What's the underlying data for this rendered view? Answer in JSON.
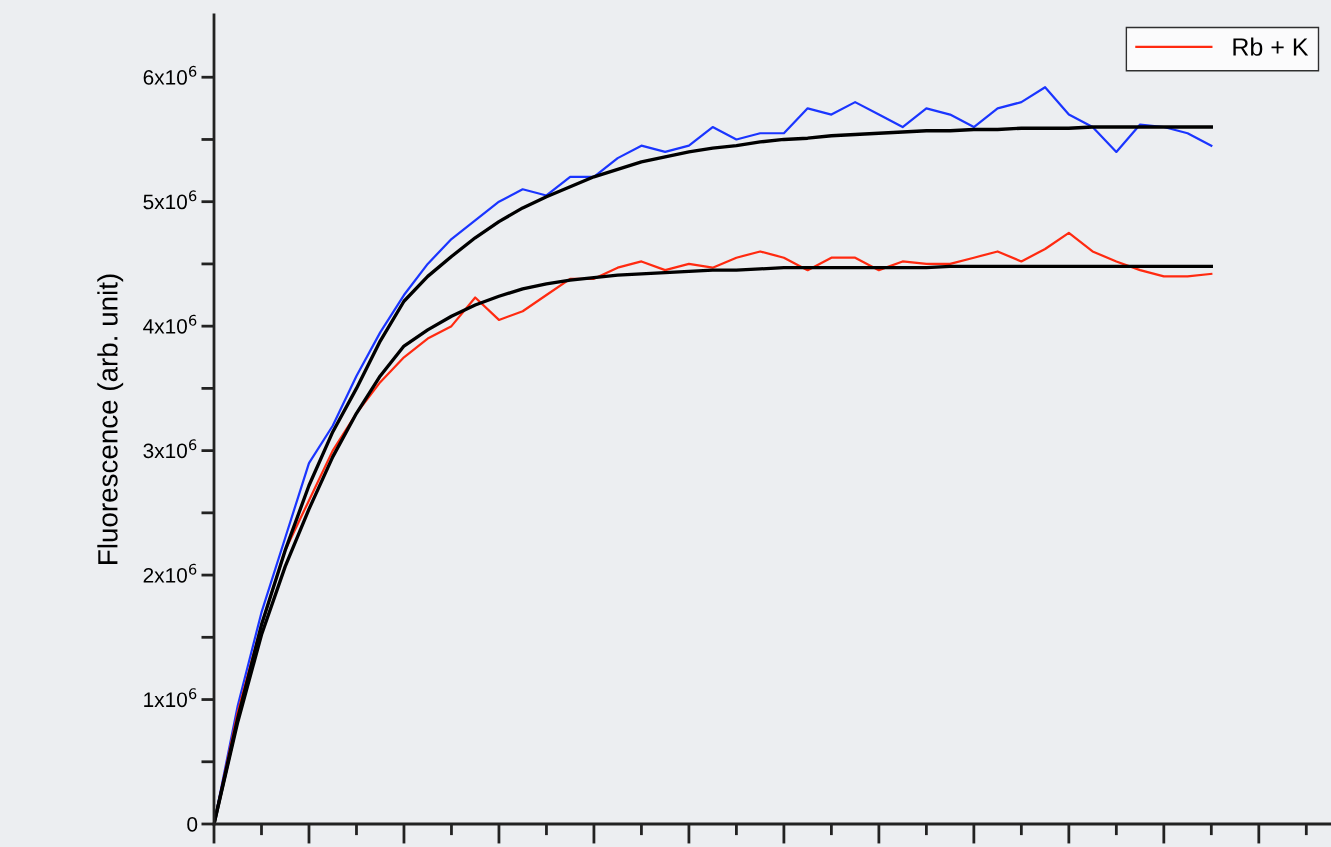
{
  "chart_data": {
    "type": "line",
    "ylabel": "Fluorescence (arb. unit)",
    "categories": [
      null,
      null,
      null,
      null,
      null,
      null,
      null,
      null,
      null,
      null,
      null,
      null,
      null,
      null,
      null,
      null,
      null,
      null,
      null,
      null,
      null,
      null,
      null,
      null,
      null,
      null,
      null,
      null,
      null,
      null,
      null,
      null,
      null,
      null,
      null,
      null,
      null,
      null,
      null,
      null,
      null,
      null,
      null
    ],
    "ylim": [
      0,
      6500000
    ],
    "yticks": [
      0,
      {
        "value": 500000,
        "label": null
      },
      {
        "value": 1000000,
        "label": "1x10$^{6}$"
      },
      {
        "value": 1500000,
        "label": null
      },
      {
        "value": 2000000,
        "label": "2x10$^{6}$"
      },
      {
        "value": 2500000,
        "label": null
      },
      {
        "value": 3000000,
        "label": "3x10$^{6}$"
      },
      {
        "value": 3500000,
        "label": null
      },
      {
        "value": 4000000,
        "label": "4x10$^{6}$"
      },
      {
        "value": 4500000,
        "label": null
      },
      {
        "value": 5000000,
        "label": "5x10$^{6}$"
      },
      {
        "value": 5500000,
        "label": null
      },
      {
        "value": 6000000,
        "label": "6x10$^{6}$"
      }
    ],
    "grid": false,
    "legend": "top right",
    "marker": "none",
    "line_style": "solid",
    "series": [
      {
        "color": "#1a35ff",
        "values": [
          0,
          950000.0,
          1700000.0,
          2300000.0,
          2900000.0,
          3200000.0,
          3600000.0,
          3950000.0,
          4250000.0,
          4500000.0,
          4700000.0,
          4850000.0,
          5000000.0,
          5100000.0,
          5050000.0,
          5200000.0,
          5200000.0,
          5350000.0,
          5450000.0,
          5400000.0,
          5450000.0,
          5600000.0,
          5500000.0,
          5550000.0,
          5550000.0,
          5750000.0,
          5700000.0,
          5800000.0,
          5700000.0,
          5600000.0,
          5750000.0,
          5700000.0,
          5600000.0,
          5750000.0,
          5800000.0,
          5920000.0,
          5700000.0,
          5600000.0,
          5400000.0,
          5620000.0,
          5600000.0,
          5550000.0,
          5450000.0
        ]
      },
      {
        "name": "Rb + K",
        "color": "#ff2a10",
        "values": [
          0,
          900000.0,
          1600000.0,
          2200000.0,
          2600000.0,
          3000000.0,
          3300000.0,
          3550000.0,
          3750000.0,
          3900000.0,
          4000000.0,
          4230000.0,
          4050000.0,
          4120000.0,
          4250000.0,
          4380000.0,
          4380000.0,
          4470000.0,
          4520000.0,
          4450000.0,
          4500000.0,
          4470000.0,
          4550000.0,
          4600000.0,
          4550000.0,
          4450000.0,
          4550000.0,
          4550000.0,
          4450000.0,
          4520000.0,
          4500000.0,
          4500000.0,
          4550000.0,
          4600000.0,
          4520000.0,
          4620000.0,
          4750000.0,
          4600000.0,
          4520000.0,
          4450000.0,
          4400000.0,
          4400000.0,
          4420000.0
        ]
      },
      {
        "color": "#000000",
        "values": [
          0,
          850000.0,
          1600000.0,
          2200000.0,
          2720000.0,
          3150000.0,
          3500000.0,
          3880000.0,
          4200000.0,
          4400000.0,
          4560000.0,
          4710000.0,
          4840000.0,
          4950000.0,
          5040000.0,
          5120000.0,
          5200000.0,
          5260000.0,
          5320000.0,
          5360000.0,
          5400000.0,
          5430000.0,
          5450000.0,
          5480000.0,
          5500000.0,
          5510000.0,
          5530000.0,
          5540000.0,
          5550000.0,
          5560000.0,
          5570000.0,
          5570000.0,
          5580000.0,
          5580000.0,
          5590000.0,
          5590000.0,
          5590000.0,
          5600000.0,
          5600000.0,
          5600000.0,
          5600000.0,
          5600000.0,
          5600000.0
        ]
      },
      {
        "color": "#000000",
        "values": [
          0,
          820000.0,
          1520000.0,
          2070000.0,
          2530000.0,
          2950000.0,
          3300000.0,
          3600000.0,
          3840000.0,
          3970000.0,
          4080000.0,
          4170000.0,
          4240000.0,
          4300000.0,
          4340000.0,
          4370000.0,
          4390000.0,
          4410000.0,
          4420000.0,
          4430000.0,
          4440000.0,
          4450000.0,
          4450000.0,
          4460000.0,
          4470000.0,
          4470000.0,
          4470000.0,
          4470000.0,
          4470000.0,
          4470000.0,
          4470000.0,
          4480000.0,
          4480000.0,
          4480000.0,
          4480000.0,
          4480000.0,
          4480000.0,
          4480000.0,
          4480000.0,
          4480000.0,
          4480000.0,
          4480000.0,
          4480000.0
        ]
      }
    ]
  }
}
